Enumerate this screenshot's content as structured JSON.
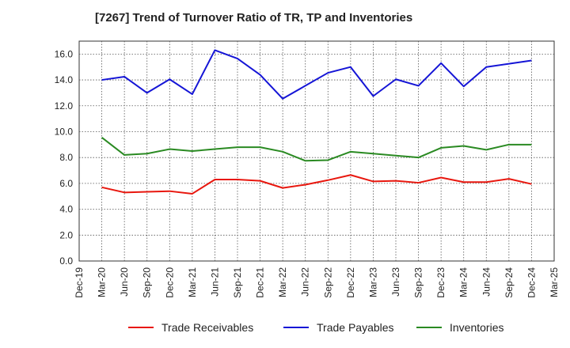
{
  "chart_data": {
    "type": "line",
    "title": "[7267]  Trend of Turnover Ratio of TR, TP and Inventories",
    "xlabel": "",
    "ylabel": "",
    "ylim": [
      0,
      17
    ],
    "yticks": [
      "0.0",
      "2.0",
      "4.0",
      "6.0",
      "8.0",
      "10.0",
      "12.0",
      "14.0",
      "16.0"
    ],
    "xticks": [
      "Dec-19",
      "Mar-20",
      "Jun-20",
      "Sep-20",
      "Dec-20",
      "Mar-21",
      "Jun-21",
      "Sep-21",
      "Dec-21",
      "Mar-22",
      "Jun-22",
      "Sep-22",
      "Dec-22",
      "Mar-23",
      "Jun-23",
      "Sep-23",
      "Dec-23",
      "Mar-24",
      "Jun-24",
      "Sep-24",
      "Dec-24",
      "Mar-25"
    ],
    "x": [
      "Mar-20",
      "Jun-20",
      "Sep-20",
      "Dec-20",
      "Mar-21",
      "Jun-21",
      "Sep-21",
      "Dec-21",
      "Mar-22",
      "Jun-22",
      "Sep-22",
      "Dec-22",
      "Mar-23",
      "Jun-23",
      "Sep-23",
      "Dec-23",
      "Mar-24",
      "Jun-24",
      "Sep-24",
      "Dec-24"
    ],
    "grid": true,
    "legend_position": "bottom",
    "series": [
      {
        "name": "Trade Receivables",
        "color": "#e8170e",
        "values": [
          5.7,
          5.3,
          5.35,
          5.4,
          5.2,
          6.3,
          6.3,
          6.2,
          5.65,
          5.9,
          6.25,
          6.65,
          6.15,
          6.2,
          6.05,
          6.45,
          6.1,
          6.1,
          6.35,
          5.95
        ]
      },
      {
        "name": "Trade Payables",
        "color": "#1515d6",
        "values": [
          14.0,
          14.25,
          13.0,
          14.05,
          12.9,
          16.3,
          15.65,
          14.4,
          12.55,
          13.55,
          14.55,
          15.0,
          12.75,
          14.05,
          13.55,
          15.3,
          13.5,
          15.0,
          15.25,
          15.5
        ]
      },
      {
        "name": "Inventories",
        "color": "#2a8a22",
        "values": [
          9.55,
          8.2,
          8.3,
          8.65,
          8.5,
          8.65,
          8.8,
          8.8,
          8.45,
          7.75,
          7.8,
          8.45,
          8.3,
          8.15,
          8.0,
          8.75,
          8.9,
          8.6,
          9.0,
          9.0
        ]
      }
    ]
  }
}
